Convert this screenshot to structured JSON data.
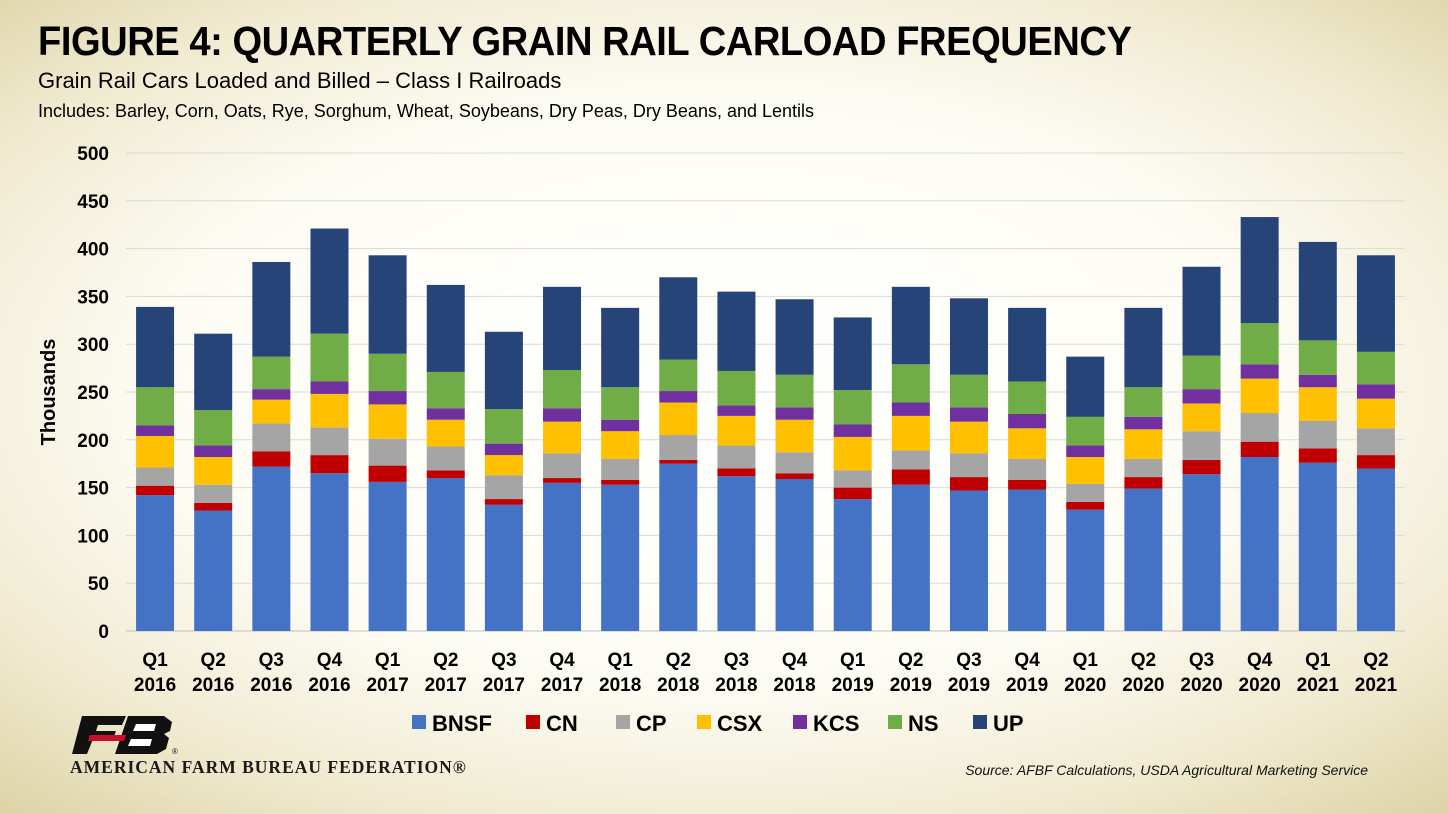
{
  "title": "FIGURE 4: QUARTERLY GRAIN RAIL CARLOAD FREQUENCY",
  "subtitle": "Grain Rail Cars Loaded and Billed – Class I Railroads",
  "includes": "Includes: Barley, Corn, Oats, Rye, Sorghum, Wheat, Soybeans, Dry Peas, Dry Beans, and Lentils",
  "source": "Source: AFBF Calculations, USDA Agricultural Marketing Service",
  "logo": {
    "name": "AMERICAN FARM BUREAU FEDERATION®",
    "mark_text": "FB",
    "mark_icon": "fb-logo-icon",
    "colors": {
      "mark": "#111111",
      "accent": "#c8102e"
    }
  },
  "chart_data": {
    "type": "bar",
    "stacked": true,
    "ylabel": "Thousands",
    "ylim": [
      0,
      500
    ],
    "yticks": [
      0,
      50,
      100,
      150,
      200,
      250,
      300,
      350,
      400,
      450,
      500
    ],
    "grid": true,
    "legend_position": "bottom",
    "categories": [
      [
        "Q1",
        "2016"
      ],
      [
        "Q2",
        "2016"
      ],
      [
        "Q3",
        "2016"
      ],
      [
        "Q4",
        "2016"
      ],
      [
        "Q1",
        "2017"
      ],
      [
        "Q2",
        "2017"
      ],
      [
        "Q3",
        "2017"
      ],
      [
        "Q4",
        "2017"
      ],
      [
        "Q1",
        "2018"
      ],
      [
        "Q2",
        "2018"
      ],
      [
        "Q3",
        "2018"
      ],
      [
        "Q4",
        "2018"
      ],
      [
        "Q1",
        "2019"
      ],
      [
        "Q2",
        "2019"
      ],
      [
        "Q3",
        "2019"
      ],
      [
        "Q4",
        "2019"
      ],
      [
        "Q1",
        "2020"
      ],
      [
        "Q2",
        "2020"
      ],
      [
        "Q3",
        "2020"
      ],
      [
        "Q4",
        "2020"
      ],
      [
        "Q1",
        "2021"
      ],
      [
        "Q2",
        "2021"
      ]
    ],
    "series": [
      {
        "name": "BNSF",
        "color": "#4472c4",
        "values": [
          142,
          126,
          172,
          165,
          156,
          160,
          132,
          155,
          153,
          175,
          162,
          159,
          138,
          153,
          147,
          148,
          127,
          149,
          164,
          182,
          176,
          170
        ]
      },
      {
        "name": "CN",
        "color": "#c00000",
        "values": [
          10,
          8,
          16,
          19,
          17,
          8,
          6,
          5,
          5,
          4,
          8,
          6,
          12,
          16,
          14,
          10,
          8,
          12,
          15,
          16,
          15,
          14
        ]
      },
      {
        "name": "CP",
        "color": "#a5a5a5",
        "values": [
          19,
          19,
          29,
          29,
          28,
          25,
          25,
          26,
          22,
          26,
          24,
          22,
          18,
          20,
          25,
          22,
          19,
          19,
          30,
          30,
          29,
          28
        ]
      },
      {
        "name": "CSX",
        "color": "#ffc000",
        "values": [
          33,
          29,
          25,
          35,
          36,
          28,
          21,
          33,
          29,
          34,
          31,
          34,
          35,
          36,
          33,
          32,
          28,
          31,
          29,
          36,
          35,
          31
        ]
      },
      {
        "name": "KCS",
        "color": "#7030a0",
        "values": [
          11,
          12,
          11,
          13,
          14,
          12,
          12,
          14,
          12,
          12,
          11,
          13,
          13,
          14,
          15,
          15,
          12,
          13,
          15,
          15,
          13,
          15
        ]
      },
      {
        "name": "NS",
        "color": "#70ad47",
        "values": [
          40,
          37,
          34,
          50,
          39,
          38,
          36,
          40,
          34,
          33,
          36,
          34,
          36,
          40,
          34,
          34,
          30,
          31,
          35,
          43,
          36,
          34
        ]
      },
      {
        "name": "UP",
        "color": "#264478",
        "values": [
          84,
          80,
          99,
          110,
          103,
          91,
          81,
          87,
          83,
          86,
          83,
          79,
          76,
          81,
          80,
          77,
          63,
          83,
          93,
          111,
          103,
          101
        ]
      }
    ]
  }
}
